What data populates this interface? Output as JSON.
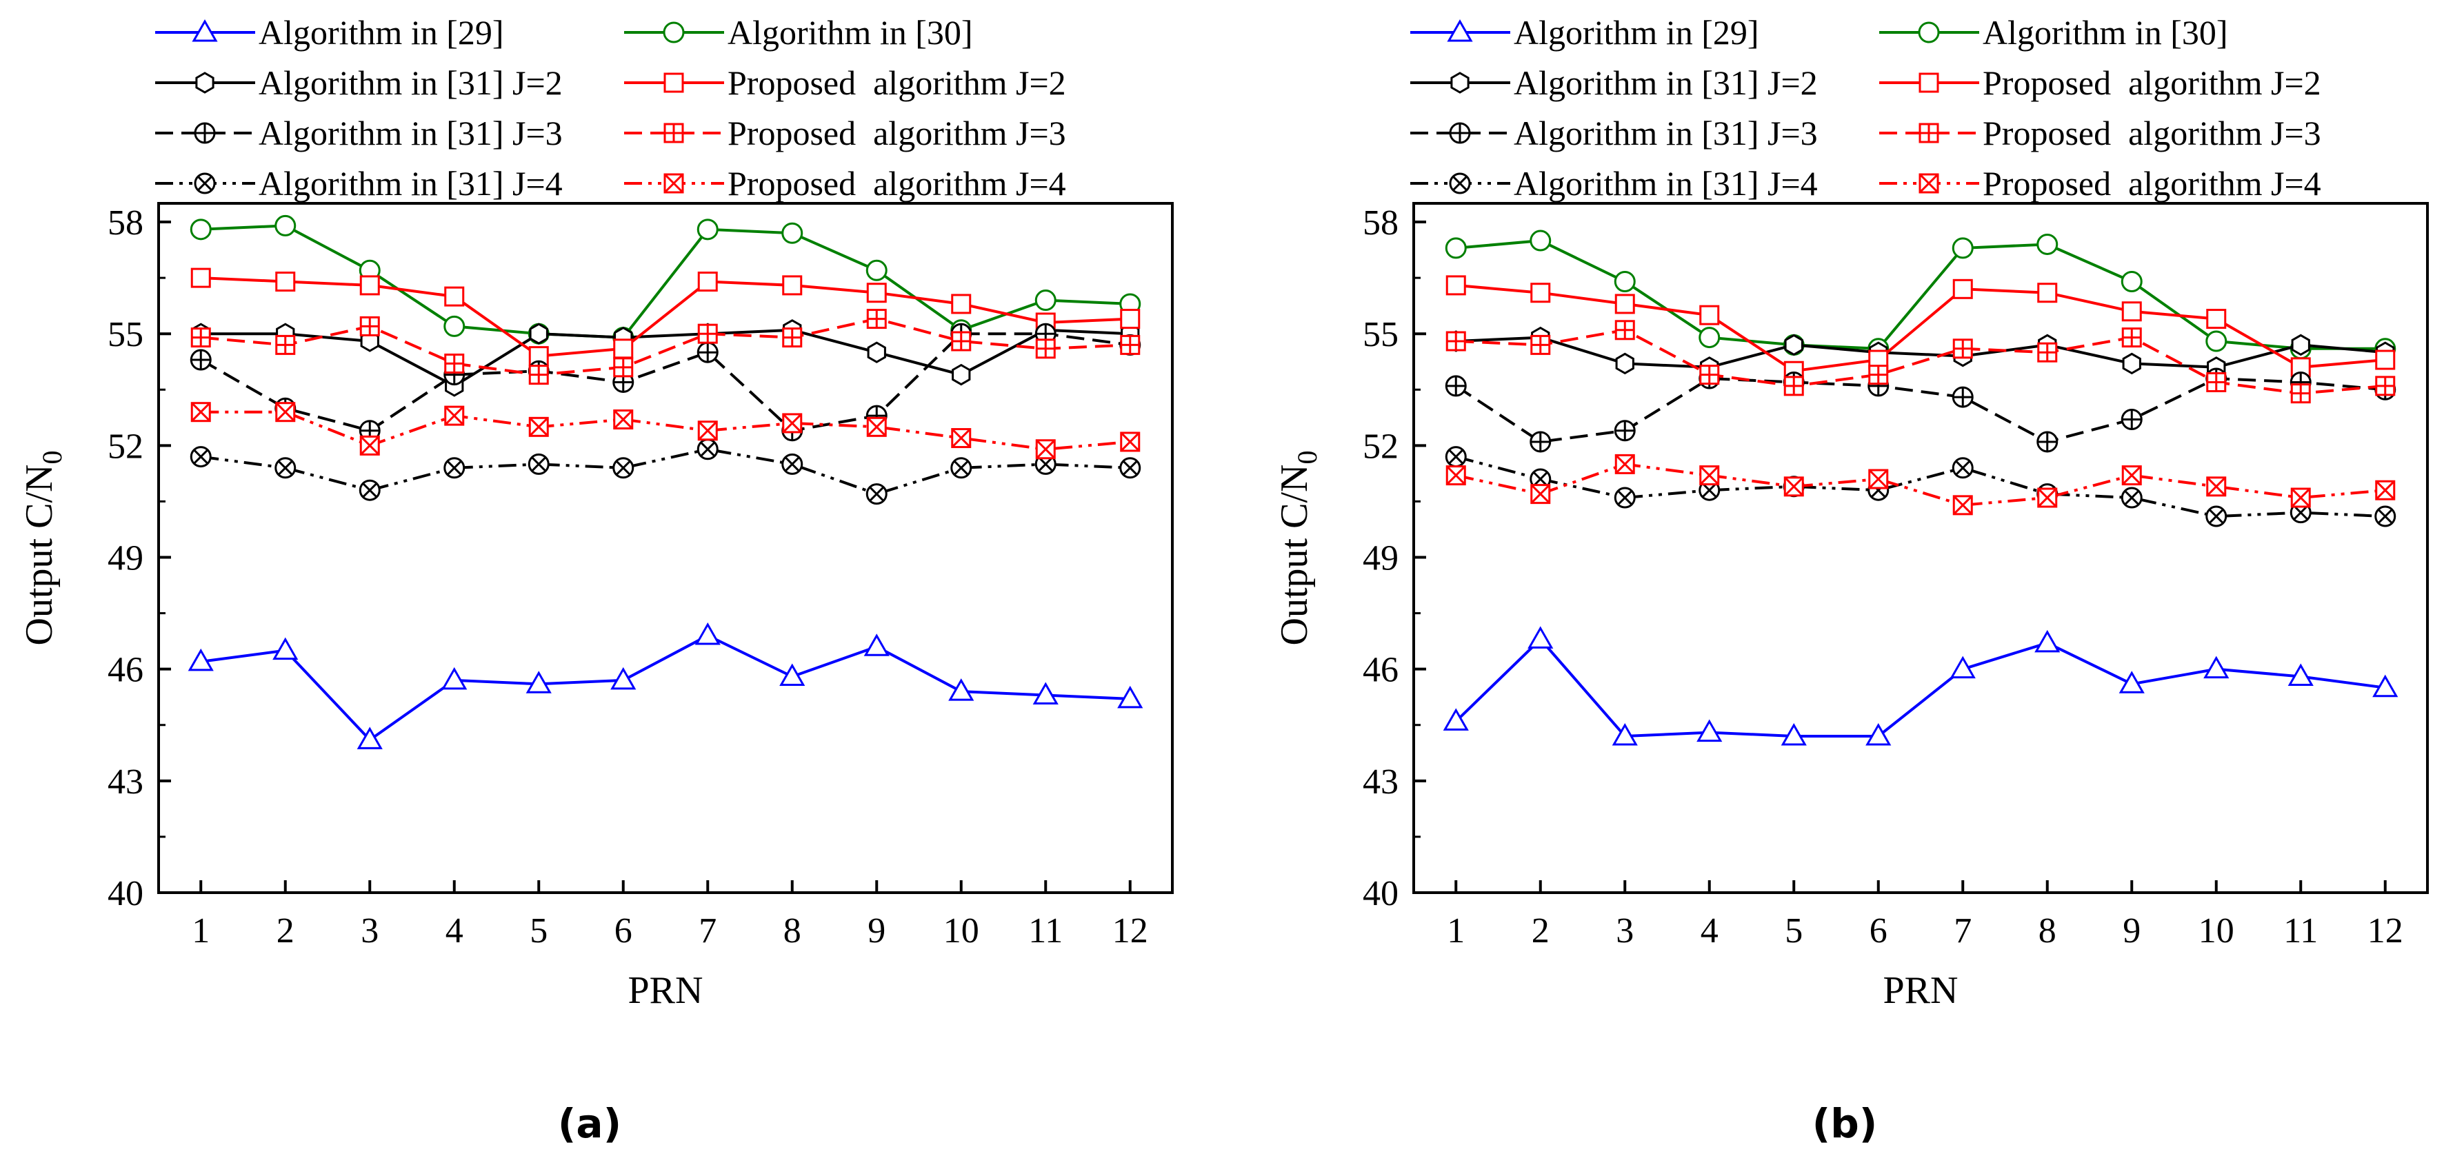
{
  "figure": {
    "captions": [
      "(a)",
      "(b)"
    ],
    "legend": [
      {
        "label": "Algorithm in [29]",
        "series": "alg29"
      },
      {
        "label": "Algorithm in [30]",
        "series": "alg30"
      },
      {
        "label": "Algorithm in [31] J=2",
        "series": "alg31_j2"
      },
      {
        "label": "Proposed  algorithm J=2",
        "series": "prop_j2"
      },
      {
        "label": "Algorithm in [31] J=3",
        "series": "alg31_j3"
      },
      {
        "label": "Proposed  algorithm J=3",
        "series": "prop_j3"
      },
      {
        "label": "Algorithm in [31] J=4",
        "series": "alg31_j4"
      },
      {
        "label": "Proposed  algorithm J=4",
        "series": "prop_j4"
      }
    ],
    "styles": {
      "alg29": {
        "color": "#0000ff",
        "dash": "none",
        "marker": "triangle"
      },
      "alg30": {
        "color": "#008000",
        "dash": "none",
        "marker": "circle"
      },
      "alg31_j2": {
        "color": "#000000",
        "dash": "none",
        "marker": "hexagon"
      },
      "prop_j2": {
        "color": "#ff0000",
        "dash": "none",
        "marker": "square"
      },
      "alg31_j3": {
        "color": "#000000",
        "dash": "dash",
        "marker": "circle-plus"
      },
      "prop_j3": {
        "color": "#ff0000",
        "dash": "dash",
        "marker": "square-plus"
      },
      "alg31_j4": {
        "color": "#000000",
        "dash": "dashdotdot",
        "marker": "circle-x"
      },
      "prop_j4": {
        "color": "#ff0000",
        "dash": "dashdotdot",
        "marker": "square-x"
      }
    }
  },
  "chart_data": [
    {
      "type": "line",
      "caption": "(a)",
      "xlabel": "PRN",
      "ylabel_main": "Output C/N",
      "ylabel_sub": "0",
      "x": [
        1,
        2,
        3,
        4,
        5,
        6,
        7,
        8,
        9,
        10,
        11,
        12
      ],
      "xlim": [
        0.5,
        12.5
      ],
      "ylim": [
        40,
        58.5
      ],
      "yticks": [
        40,
        43,
        46,
        49,
        52,
        55,
        58
      ],
      "series": [
        {
          "key": "alg29",
          "name": "Algorithm in [29]",
          "values": [
            46.2,
            46.5,
            44.1,
            45.7,
            45.6,
            45.7,
            46.9,
            45.8,
            46.6,
            45.4,
            45.3,
            45.2
          ]
        },
        {
          "key": "alg30",
          "name": "Algorithm in [30]",
          "values": [
            57.8,
            57.9,
            56.7,
            55.2,
            55.0,
            54.9,
            57.8,
            57.7,
            56.7,
            55.1,
            55.9,
            55.8
          ]
        },
        {
          "key": "alg31_j2",
          "name": "Algorithm in [31] J=2",
          "values": [
            55.0,
            55.0,
            54.8,
            53.6,
            55.0,
            54.9,
            55.0,
            55.1,
            54.5,
            53.9,
            55.1,
            55.0
          ]
        },
        {
          "key": "prop_j2",
          "name": "Proposed  algorithm J=2",
          "values": [
            56.5,
            56.4,
            56.3,
            56.0,
            54.4,
            54.6,
            56.4,
            56.3,
            56.1,
            55.8,
            55.3,
            55.4
          ]
        },
        {
          "key": "alg31_j3",
          "name": "Algorithm in [31] J=3",
          "values": [
            54.3,
            53.0,
            52.4,
            53.9,
            54.0,
            53.7,
            54.5,
            52.4,
            52.8,
            55.0,
            55.0,
            54.7
          ]
        },
        {
          "key": "prop_j3",
          "name": "Proposed  algorithm J=3",
          "values": [
            54.9,
            54.7,
            55.2,
            54.2,
            53.9,
            54.1,
            55.0,
            54.9,
            55.4,
            54.8,
            54.6,
            54.7
          ]
        },
        {
          "key": "alg31_j4",
          "name": "Algorithm in [31] J=4",
          "values": [
            51.7,
            51.4,
            50.8,
            51.4,
            51.5,
            51.4,
            51.9,
            51.5,
            50.7,
            51.4,
            51.5,
            51.4
          ]
        },
        {
          "key": "prop_j4",
          "name": "Proposed  algorithm J=4",
          "values": [
            52.9,
            52.9,
            52.0,
            52.8,
            52.5,
            52.7,
            52.4,
            52.6,
            52.5,
            52.2,
            51.9,
            52.1
          ]
        }
      ]
    },
    {
      "type": "line",
      "caption": "(b)",
      "xlabel": "PRN",
      "ylabel_main": "Output C/N",
      "ylabel_sub": "0",
      "x": [
        1,
        2,
        3,
        4,
        5,
        6,
        7,
        8,
        9,
        10,
        11,
        12
      ],
      "xlim": [
        0.5,
        12.5
      ],
      "ylim": [
        40,
        58.5
      ],
      "yticks": [
        40,
        43,
        46,
        49,
        52,
        55,
        58
      ],
      "series": [
        {
          "key": "alg29",
          "name": "Algorithm in [29]",
          "values": [
            44.6,
            46.8,
            44.2,
            44.3,
            44.2,
            44.2,
            46.0,
            46.7,
            45.6,
            46.0,
            45.8,
            45.5
          ]
        },
        {
          "key": "alg30",
          "name": "Algorithm in [30]",
          "values": [
            57.3,
            57.5,
            56.4,
            54.9,
            54.7,
            54.6,
            57.3,
            57.4,
            56.4,
            54.8,
            54.6,
            54.6
          ]
        },
        {
          "key": "alg31_j2",
          "name": "Algorithm in [31] J=2",
          "values": [
            54.8,
            54.9,
            54.2,
            54.1,
            54.7,
            54.5,
            54.4,
            54.7,
            54.2,
            54.1,
            54.7,
            54.5
          ]
        },
        {
          "key": "prop_j2",
          "name": "Proposed  algorithm J=2",
          "values": [
            56.3,
            56.1,
            55.8,
            55.5,
            54.0,
            54.3,
            56.2,
            56.1,
            55.6,
            55.4,
            54.1,
            54.3
          ]
        },
        {
          "key": "alg31_j3",
          "name": "Algorithm in [31] J=3",
          "values": [
            53.6,
            52.1,
            52.4,
            53.8,
            53.7,
            53.6,
            53.3,
            52.1,
            52.7,
            53.8,
            53.7,
            53.5
          ]
        },
        {
          "key": "prop_j3",
          "name": "Proposed  algorithm J=3",
          "values": [
            54.8,
            54.7,
            55.1,
            53.9,
            53.6,
            53.9,
            54.6,
            54.5,
            54.9,
            53.7,
            53.4,
            53.6
          ]
        },
        {
          "key": "alg31_j4",
          "name": "Algorithm in [31] J=4",
          "values": [
            51.7,
            51.1,
            50.6,
            50.8,
            50.9,
            50.8,
            51.4,
            50.7,
            50.6,
            50.1,
            50.2,
            50.1
          ]
        },
        {
          "key": "prop_j4",
          "name": "Proposed  algorithm J=4",
          "values": [
            51.2,
            50.7,
            51.5,
            51.2,
            50.9,
            51.1,
            50.4,
            50.6,
            51.2,
            50.9,
            50.6,
            50.8
          ]
        }
      ]
    }
  ]
}
